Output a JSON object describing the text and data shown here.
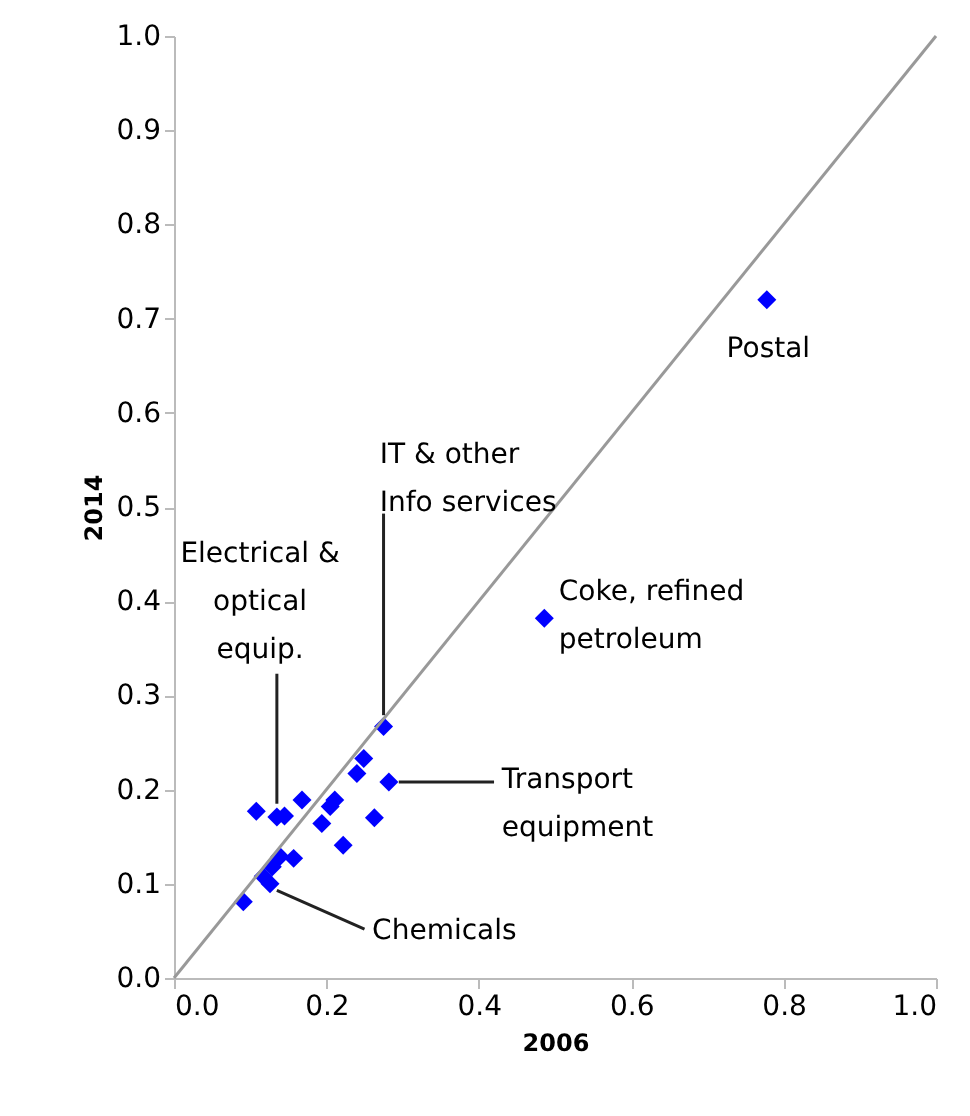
{
  "chart_data": {
    "type": "scatter",
    "xlabel": "2006",
    "ylabel": "2014",
    "xlim": [
      0,
      1
    ],
    "ylim": [
      0,
      1
    ],
    "xticks": [
      {
        "value": 0,
        "label": "0.0"
      },
      0.2,
      0.4,
      0.6,
      0.8,
      {
        "value": 1,
        "label": "1.0"
      }
    ],
    "yticks": [
      {
        "value": 0,
        "label": "0.0"
      },
      0.1,
      0.2,
      0.3,
      0.4,
      0.5,
      0.6,
      0.7,
      0.8,
      0.9,
      {
        "value": 1,
        "label": "1.0"
      }
    ],
    "grid": false,
    "marker": "diamond",
    "series": [
      {
        "type": "scatter",
        "color": "#0000ff",
        "x": [
          0.275,
          0.249,
          0.24,
          0.282,
          0.108,
          0.135,
          0.145,
          0.168,
          0.211,
          0.205,
          0.194,
          0.263,
          0.222,
          0.157,
          0.139,
          0.129,
          0.117,
          0.126,
          0.091,
          0.486,
          0.778
        ],
        "values": [
          0.267,
          0.233,
          0.217,
          0.208,
          0.177,
          0.171,
          0.172,
          0.189,
          0.189,
          0.182,
          0.164,
          0.17,
          0.141,
          0.127,
          0.129,
          0.118,
          0.108,
          0.1,
          0.081,
          0.382,
          0.72
        ]
      },
      {
        "type": "line",
        "color": "#999999",
        "x": [
          0,
          1
        ],
        "values": [
          0,
          1
        ],
        "marker": "none"
      }
    ],
    "annotations": [
      {
        "text": "Postal",
        "x": 0.778,
        "y": 0.72
      },
      {
        "text": "Coke, refined\npetroleum",
        "x": 0.486,
        "y": 0.382
      },
      {
        "text": "IT & other\nInfo services",
        "x": 0.275,
        "y": 0.267
      },
      {
        "text": "Electrical &\noptical\nequip.",
        "x": 0.135,
        "y": 0.171
      },
      {
        "text": "Transport\nequipment",
        "x": 0.282,
        "y": 0.208
      },
      {
        "text": "Chemicals",
        "x": 0.126,
        "y": 0.1
      }
    ]
  }
}
